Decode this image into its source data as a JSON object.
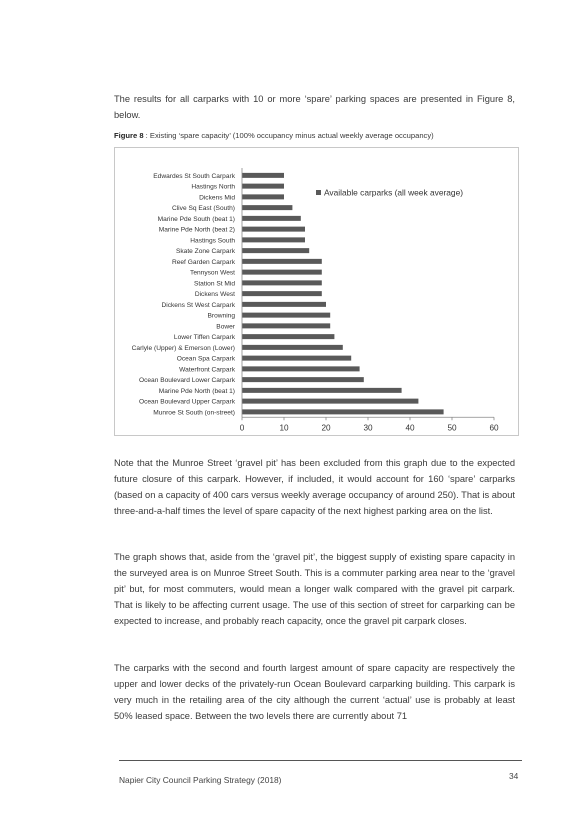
{
  "intro": "The results for all carparks with 10 or more ‘spare’ parking spaces are presented in Figure 8, below.",
  "caption": {
    "label": "Figure 8",
    "text": " : Existing ‘spare capacity’ (100% occupancy minus actual weekly average occupancy)"
  },
  "chart_data": {
    "type": "bar",
    "orientation": "horizontal",
    "categories": [
      "Edwardes St South Carpark",
      "Hastings North",
      "Dickens Mid",
      "Clive Sq East (South)",
      "Marine Pde South (beat 1)",
      "Marine Pde North (beat 2)",
      "Hastings South",
      "Skate Zone Carpark",
      "Reef Garden Carpark",
      "Tennyson West",
      "Station St Mid",
      "Dickens West",
      "Dickens St West Carpark",
      "Browning",
      "Bower",
      "Lower Tiffen Carpark",
      "Carlyle (Upper) & Emerson (Lower)",
      "Ocean Spa Carpark",
      "Waterfront Carpark",
      "Ocean Boulevard Lower Carpark",
      "Marine Pde North (beat 1)",
      "Ocean Boulevard Upper Carpark",
      "Munroe St South (on-street)"
    ],
    "series": [
      {
        "name": "Available carparks (all week average)",
        "values": [
          10,
          10,
          10,
          12,
          14,
          15,
          15,
          16,
          19,
          19,
          19,
          19,
          20,
          21,
          21,
          22,
          24,
          26,
          28,
          29,
          38,
          42,
          48
        ]
      }
    ],
    "xlim": [
      0,
      60
    ],
    "xticks": [
      "0",
      "10",
      "20",
      "30",
      "40",
      "50",
      "60"
    ],
    "legend_position": "top-right",
    "grid": false,
    "bar_color": "#595959"
  },
  "paragraphs": [
    "Note that the Munroe Street ‘gravel pit’ has been excluded from this graph due to the expected future closure of this carpark.  However, if included, it would account for 160 ‘spare’ carparks (based on a capacity of 400 cars versus weekly average occupancy of around 250).  That is about three-and-a-half times the level of spare capacity of the next highest parking area on the list.",
    "The graph shows that, aside from the ‘gravel pit’, the biggest supply of existing spare capacity in the surveyed area is on Munroe Street South.  This is a commuter parking area near to the ‘gravel pit’ but, for most commuters, would mean a longer walk compared with the gravel pit carpark.  That is likely to be affecting current usage.  The use of this section of street for carparking can be expected to increase, and probably reach capacity, once the gravel pit carpark closes.",
    "The carparks with the second and fourth largest amount of spare capacity are respectively the upper and lower decks of the privately-run Ocean Boulevard carparking building.  This carpark is very much in the retailing area of the city although the current ‘actual’ use is probably at least 50% leased space.  Between the two levels there are currently about 71"
  ],
  "footer": {
    "text": "Napier City Council Parking Strategy (2018)",
    "page_number": "34"
  }
}
